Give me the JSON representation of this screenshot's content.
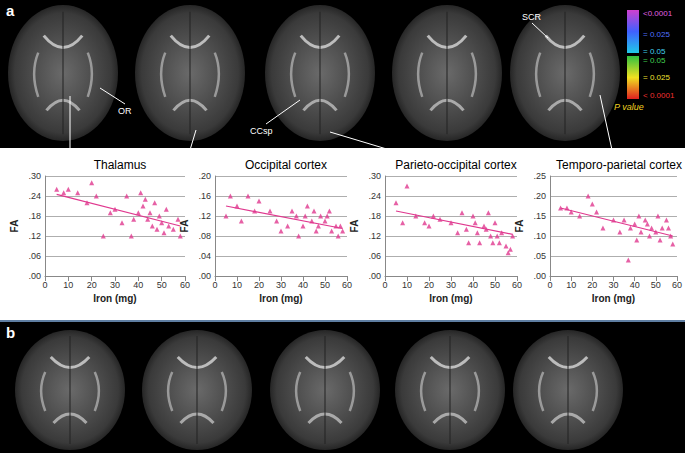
{
  "figure": {
    "panel_labels": [
      "a",
      "b"
    ],
    "annotations": [
      "OR",
      "CCsp",
      "SCR"
    ],
    "colorbar": {
      "title": "P value",
      "labels": [
        "<0.0001",
        "= 0.025",
        "= 0.05",
        "= 0.05",
        "= 0.025",
        "< 0.0001"
      ]
    }
  },
  "chart_data": [
    {
      "type": "scatter",
      "title": "Thalamus",
      "x_label": "Iron (mg)",
      "y_label": "FA",
      "color": "#e0388f",
      "marker": "triangle",
      "grid": true,
      "x": [
        5,
        8,
        10,
        14,
        18,
        20,
        22,
        25,
        28,
        30,
        33,
        35,
        37,
        38,
        40,
        41,
        42,
        43,
        44,
        45,
        46,
        47,
        48,
        49,
        50,
        51,
        52,
        53,
        55,
        57,
        58
      ],
      "values": [
        0.26,
        0.25,
        0.26,
        0.25,
        0.22,
        0.28,
        0.24,
        0.12,
        0.19,
        0.2,
        0.16,
        0.24,
        0.12,
        0.17,
        0.19,
        0.25,
        0.21,
        0.23,
        0.17,
        0.19,
        0.15,
        0.22,
        0.14,
        0.18,
        0.16,
        0.13,
        0.2,
        0.15,
        0.14,
        0.17,
        0.12
      ],
      "fit_line": {
        "x": [
          5,
          58
        ],
        "values": [
          0.245,
          0.15
        ]
      },
      "xlim": [
        0,
        60
      ],
      "xticks": [
        0,
        10,
        20,
        30,
        40,
        50,
        60
      ],
      "ylim": [
        0,
        0.3
      ],
      "yticks": [
        {
          "value": 0,
          "label": ".00"
        },
        {
          "value": 0.06,
          "label": ".06"
        },
        {
          "value": 0.12,
          "label": ".12"
        },
        {
          "value": 0.18,
          "label": ".18"
        },
        {
          "value": 0.24,
          "label": ".24"
        },
        {
          "value": 0.3,
          "label": ".30"
        }
      ]
    },
    {
      "type": "scatter",
      "title": "Occipital cortex",
      "x_label": "Iron (mg)",
      "y_label": "FA",
      "color": "#e0388f",
      "marker": "triangle",
      "grid": true,
      "x": [
        5,
        7,
        10,
        12,
        15,
        18,
        20,
        25,
        28,
        30,
        33,
        35,
        37,
        38,
        40,
        41,
        42,
        44,
        45,
        46,
        47,
        48,
        50,
        51,
        52,
        53,
        55,
        56,
        57,
        58
      ],
      "values": [
        0.12,
        0.16,
        0.14,
        0.11,
        0.16,
        0.13,
        0.15,
        0.13,
        0.11,
        0.09,
        0.1,
        0.13,
        0.12,
        0.08,
        0.1,
        0.12,
        0.14,
        0.11,
        0.13,
        0.09,
        0.1,
        0.12,
        0.11,
        0.12,
        0.13,
        0.09,
        0.1,
        0.08,
        0.1,
        0.09
      ],
      "fit_line": {
        "x": [
          5,
          58
        ],
        "values": [
          0.14,
          0.095
        ]
      },
      "xlim": [
        0,
        60
      ],
      "xticks": [
        0,
        10,
        20,
        30,
        40,
        50,
        60
      ],
      "ylim": [
        0,
        0.2
      ],
      "yticks": [
        {
          "value": 0,
          "label": ".00"
        },
        {
          "value": 0.04,
          "label": ".04"
        },
        {
          "value": 0.08,
          "label": ".08"
        },
        {
          "value": 0.12,
          "label": ".12"
        },
        {
          "value": 0.16,
          "label": ".16"
        },
        {
          "value": 0.2,
          "label": ".20"
        }
      ]
    },
    {
      "type": "scatter",
      "title": "Parieto-occipital cortex",
      "x_label": "Iron (mg)",
      "y_label": "FA",
      "color": "#e0388f",
      "marker": "triangle",
      "grid": true,
      "x": [
        5,
        8,
        10,
        14,
        18,
        20,
        22,
        25,
        30,
        33,
        35,
        37,
        38,
        40,
        41,
        42,
        43,
        45,
        46,
        47,
        48,
        49,
        50,
        51,
        52,
        53,
        55,
        56,
        57,
        58
      ],
      "values": [
        0.22,
        0.16,
        0.27,
        0.18,
        0.16,
        0.15,
        0.18,
        0.17,
        0.16,
        0.13,
        0.19,
        0.14,
        0.1,
        0.18,
        0.16,
        0.13,
        0.1,
        0.15,
        0.14,
        0.19,
        0.12,
        0.1,
        0.16,
        0.12,
        0.1,
        0.13,
        0.09,
        0.07,
        0.08,
        0.12
      ],
      "fit_line": {
        "x": [
          5,
          58
        ],
        "values": [
          0.195,
          0.125
        ]
      },
      "xlim": [
        0,
        60
      ],
      "xticks": [
        0,
        10,
        20,
        30,
        40,
        50,
        60
      ],
      "ylim": [
        0,
        0.3
      ],
      "yticks": [
        {
          "value": 0,
          "label": ".00"
        },
        {
          "value": 0.06,
          "label": ".06"
        },
        {
          "value": 0.12,
          "label": ".12"
        },
        {
          "value": 0.18,
          "label": ".18"
        },
        {
          "value": 0.24,
          "label": ".24"
        },
        {
          "value": 0.3,
          "label": ".30"
        }
      ]
    },
    {
      "type": "scatter",
      "title": "Temporo-parietal cortex",
      "x_label": "Iron (mg)",
      "y_label": "FA",
      "color": "#e0388f",
      "marker": "triangle",
      "grid": true,
      "x": [
        5,
        8,
        10,
        14,
        18,
        20,
        22,
        25,
        30,
        33,
        35,
        37,
        38,
        40,
        41,
        42,
        43,
        45,
        46,
        47,
        48,
        50,
        51,
        52,
        53,
        55,
        56,
        57,
        58
      ],
      "values": [
        0.17,
        0.17,
        0.16,
        0.15,
        0.2,
        0.18,
        0.16,
        0.12,
        0.14,
        0.11,
        0.14,
        0.04,
        0.12,
        0.13,
        0.09,
        0.15,
        0.11,
        0.14,
        0.13,
        0.1,
        0.12,
        0.11,
        0.15,
        0.09,
        0.12,
        0.14,
        0.12,
        0.1,
        0.08
      ],
      "fit_line": {
        "x": [
          5,
          58
        ],
        "values": [
          0.17,
          0.1
        ]
      },
      "xlim": [
        0,
        60
      ],
      "xticks": [
        0,
        10,
        20,
        30,
        40,
        50,
        60
      ],
      "ylim": [
        0,
        0.25
      ],
      "yticks": [
        {
          "value": 0,
          "label": ".00"
        },
        {
          "value": 0.05,
          "label": ".05"
        },
        {
          "value": 0.1,
          "label": ".10"
        },
        {
          "value": 0.15,
          "label": ".15"
        },
        {
          "value": 0.2,
          "label": ".20"
        },
        {
          "value": 0.25,
          "label": ".25"
        }
      ]
    }
  ]
}
